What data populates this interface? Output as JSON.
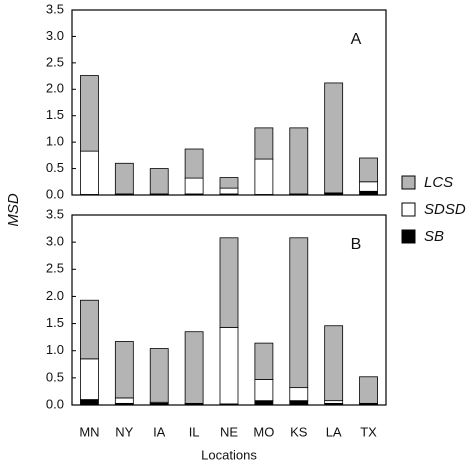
{
  "chart_data": [
    {
      "type": "bar",
      "stacked": true,
      "annotation": "A",
      "ylabel": "MSD",
      "categories": [
        null,
        null,
        null,
        null,
        null,
        null,
        null,
        null,
        null
      ],
      "ylim": [
        0,
        3.5
      ],
      "yticks": [
        {
          "value": 0,
          "label": "0.0"
        },
        {
          "value": 0.5,
          "label": "0.5"
        },
        {
          "value": 1,
          "label": "1.0"
        },
        {
          "value": 1.5,
          "label": "1.5"
        },
        {
          "value": 2,
          "label": "2.0"
        },
        {
          "value": 2.5,
          "label": "2.5"
        },
        {
          "value": 3,
          "label": "3.0"
        },
        {
          "value": 3.5,
          "label": "3.5"
        }
      ],
      "legend": "right",
      "series": [
        {
          "name": "SB",
          "color": "#000000",
          "values": [
            0.01,
            0.01,
            0.01,
            0.02,
            0.02,
            0.01,
            0.01,
            0.03,
            0.07
          ]
        },
        {
          "name": "SDSD",
          "color": "#ffffff",
          "values": [
            0.82,
            0.01,
            0.01,
            0.3,
            0.11,
            0.67,
            0.01,
            0.01,
            0.18
          ]
        },
        {
          "name": "LCS",
          "color": "#b4b4b4",
          "values": [
            1.43,
            0.58,
            0.48,
            0.55,
            0.2,
            0.59,
            1.25,
            2.08,
            0.45
          ]
        }
      ]
    },
    {
      "type": "bar",
      "stacked": true,
      "annotation": "B",
      "xlabel": "Locations",
      "categories": [
        "MN",
        "NY",
        "IA",
        "IL",
        "NE",
        "MO",
        "KS",
        "LA",
        "TX"
      ],
      "ylim": [
        0,
        3.5
      ],
      "yticks": [
        {
          "value": 0,
          "label": "0.0"
        },
        {
          "value": 0.5,
          "label": "0.5"
        },
        {
          "value": 1,
          "label": "1.0"
        },
        {
          "value": 1.5,
          "label": "1.5"
        },
        {
          "value": 2,
          "label": "2.0"
        },
        {
          "value": 2.5,
          "label": "2.5"
        },
        {
          "value": 3,
          "label": "3.0"
        },
        {
          "value": 3.5,
          "label": "3.5"
        }
      ],
      "series": [
        {
          "color": "#000000",
          "values": [
            0.1,
            0.03,
            0.03,
            0.02,
            0.02,
            0.08,
            0.08,
            0.03,
            0.02
          ]
        },
        {
          "color": "#ffffff",
          "values": [
            0.75,
            0.1,
            0.02,
            0.01,
            1.41,
            0.39,
            0.24,
            0.05,
            0.01
          ]
        },
        {
          "color": "#b4b4b4",
          "values": [
            1.08,
            1.04,
            0.99,
            1.32,
            1.65,
            0.67,
            2.76,
            1.38,
            0.49
          ]
        }
      ]
    }
  ]
}
